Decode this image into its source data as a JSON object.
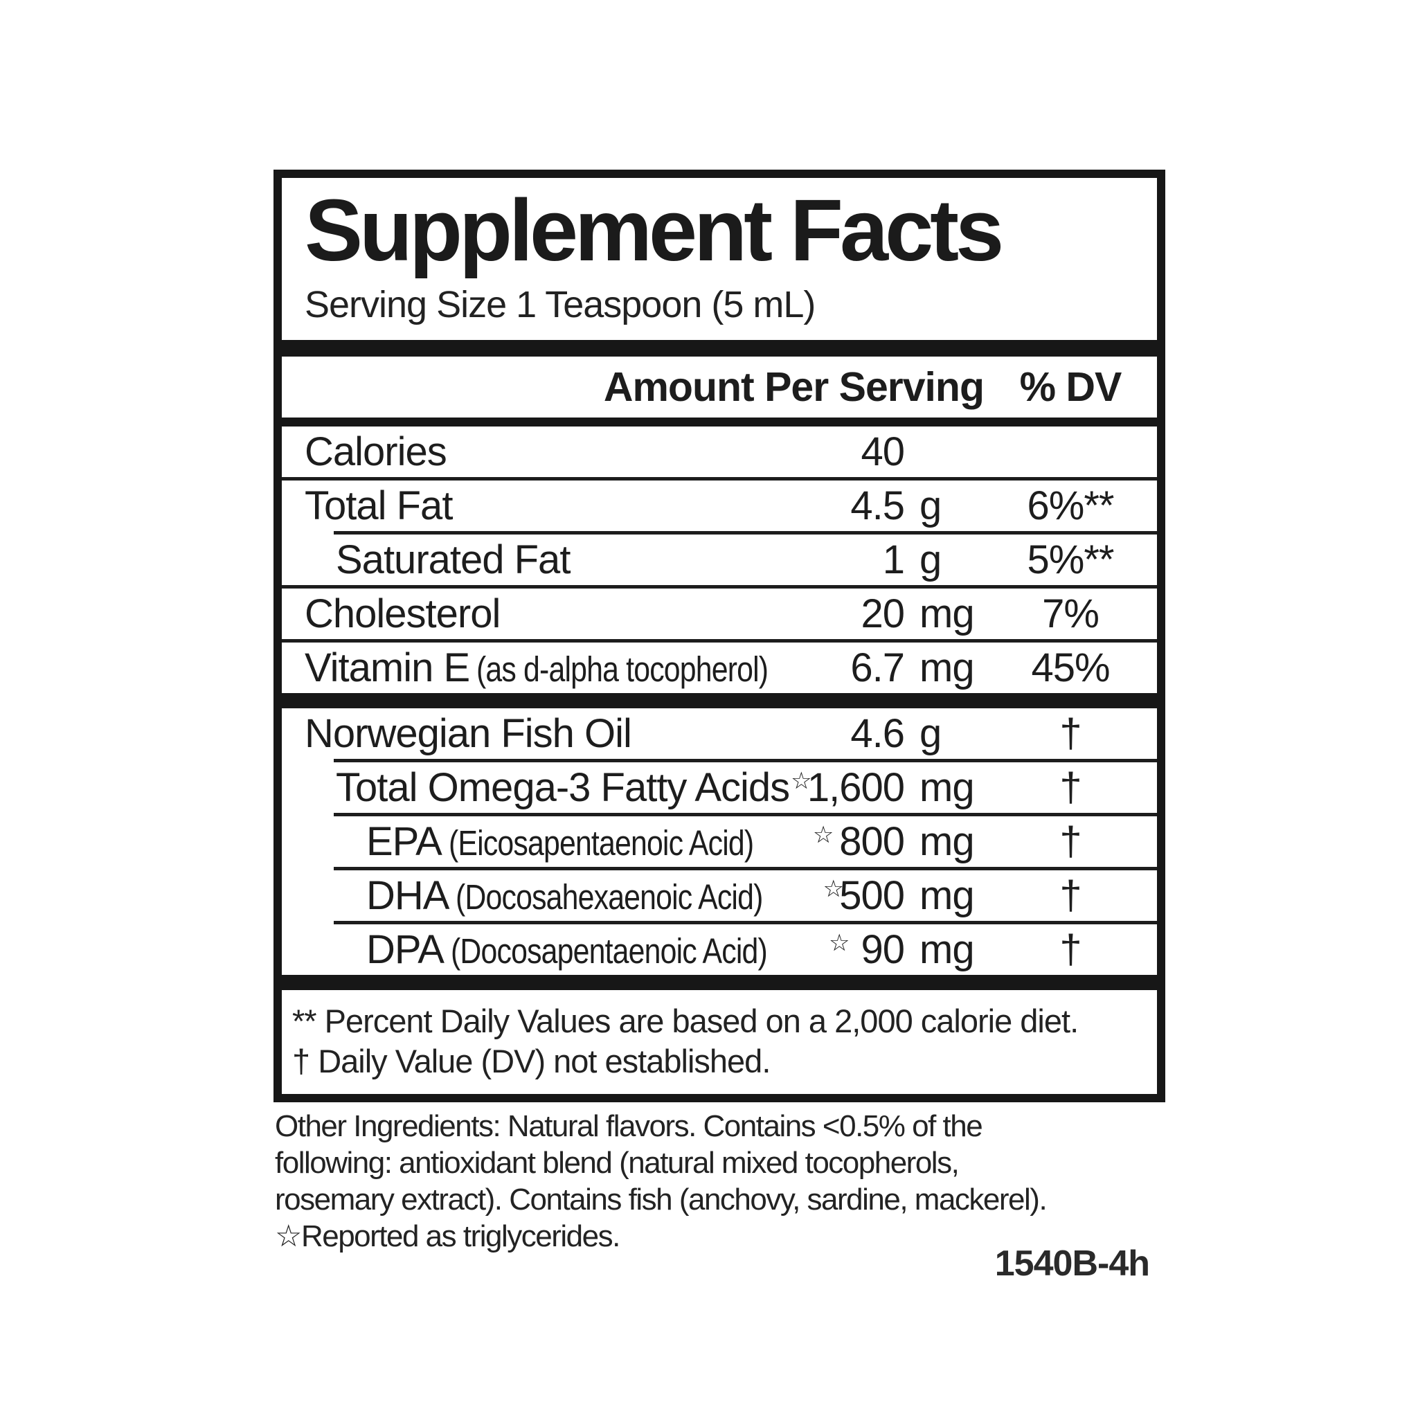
{
  "label": {
    "title": "Supplement Facts",
    "serving_size": "Serving Size 1 Teaspoon (5 mL)",
    "columns": {
      "amount_header": "Amount Per Serving",
      "dv_header": "% DV"
    },
    "rows": [
      {
        "name": "Calories",
        "note": "",
        "star": "",
        "amount": "40",
        "unit": "",
        "dv": ""
      },
      {
        "name": "Total Fat",
        "note": "",
        "star": "",
        "amount": "4.5",
        "unit": "g",
        "dv": "6%**"
      },
      {
        "name": "Saturated Fat",
        "note": "",
        "star": "",
        "amount": "1",
        "unit": "g",
        "dv": "5%**"
      },
      {
        "name": "Cholesterol",
        "note": "",
        "star": "",
        "amount": "20",
        "unit": "mg",
        "dv": "7%"
      },
      {
        "name": "Vitamin E",
        "note": "(as d-alpha tocopherol)",
        "star": "",
        "amount": "6.7",
        "unit": "mg",
        "dv": "45%"
      },
      {
        "name": "Norwegian Fish Oil",
        "note": "",
        "star": "",
        "amount": "4.6",
        "unit": "g",
        "dv": "†"
      },
      {
        "name": "Total Omega-3 Fatty Acids",
        "note": "",
        "star": "☆",
        "amount": "1,600",
        "unit": "mg",
        "dv": "†"
      },
      {
        "name": "EPA",
        "note": "(Eicosapentaenoic Acid)",
        "star": "☆",
        "amount": "800",
        "unit": "mg",
        "dv": "†"
      },
      {
        "name": "DHA",
        "note": "(Docosahexaenoic Acid)",
        "star": "☆",
        "amount": "500",
        "unit": "mg",
        "dv": "†"
      },
      {
        "name": "DPA",
        "note": "(Docosapentaenoic Acid)",
        "star": "☆",
        "amount": "90",
        "unit": "mg",
        "dv": "†"
      }
    ],
    "footnotes": {
      "line1": "** Percent Daily Values are based on a 2,000 calorie diet.",
      "line2": "† Daily Value (DV) not established."
    },
    "other_ingredients": {
      "line1": "Other Ingredients: Natural flavors. Contains <0.5% of the",
      "line2": "following: antioxidant blend (natural mixed tocopherols,",
      "line3": "rosemary extract). Contains fish (anchovy, sardine, mackerel).",
      "line4": "☆Reported as triglycerides."
    },
    "product_code": "1540B-4h",
    "colors": {
      "ink": "#1d1d1d",
      "background": "#ffffff"
    }
  }
}
